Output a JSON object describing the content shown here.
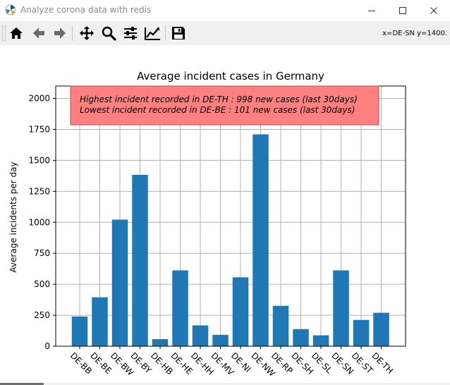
{
  "window": {
    "title": "Analyze corona data with redis",
    "app_icon": "matplotlib-icon",
    "controls": [
      "minimize-icon",
      "maximize-icon",
      "close-icon"
    ]
  },
  "toolbar": {
    "buttons": [
      "home-icon",
      "back-arrow-icon",
      "forward-arrow-icon",
      "pan-icon",
      "zoom-icon",
      "subplots-icon",
      "edit-curve-icon",
      "save-icon"
    ],
    "coords": "x=DE-SN y=1400."
  },
  "chart_data": {
    "type": "bar",
    "title": "Average incident cases in Germany",
    "xlabel": "",
    "ylabel": "Average incidents per day",
    "categories": [
      "DE-BB",
      "DE-BE",
      "DE-BW",
      "DE-BY",
      "DE-HB",
      "DE-HE",
      "DE-HH",
      "DE-MV",
      "DE-NI",
      "DE-NW",
      "DE-RP",
      "DE-SH",
      "DE-SL",
      "DE-SN",
      "DE-ST",
      "DE-TH"
    ],
    "values": [
      240,
      395,
      1022,
      1383,
      57,
      612,
      168,
      92,
      556,
      1710,
      326,
      138,
      88,
      612,
      212,
      270
    ],
    "ylim": [
      0,
      2100
    ],
    "yticks": [
      0,
      250,
      500,
      750,
      1000,
      1250,
      1500,
      1750,
      2000
    ],
    "grid": true,
    "bar_color": "#1f77b4",
    "annotation": {
      "lines": [
        "Highest incident recorded in DE-TH : 998 new cases (last 30days)",
        "Lowest incident recorded in DE-BE : 101 new cases (last 30days)"
      ],
      "background": "#ff8080",
      "border": "#b05050"
    }
  }
}
